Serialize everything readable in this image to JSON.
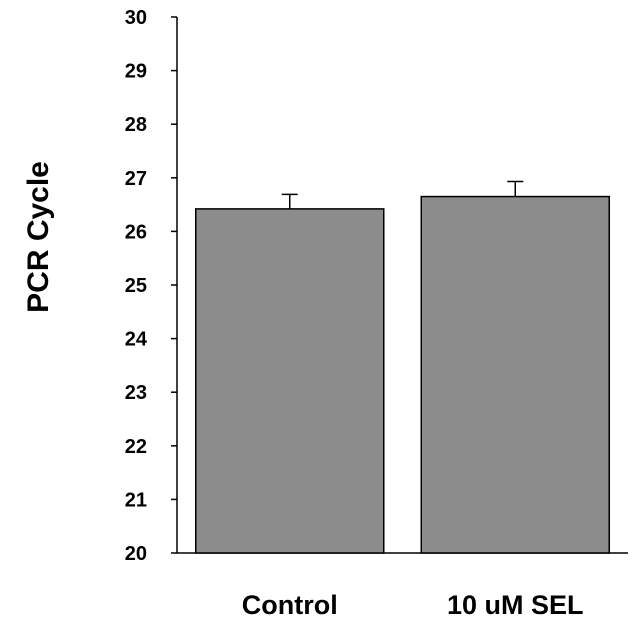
{
  "chart_data": {
    "type": "bar",
    "title": "",
    "xlabel": "",
    "ylabel": "PCR Cycle",
    "categories": [
      "Control",
      "10 uM SEL"
    ],
    "values": [
      26.42,
      26.65
    ],
    "errors": [
      0.27,
      0.28
    ],
    "ylim": [
      20,
      30
    ],
    "yticks": [
      "20",
      "21",
      "22",
      "23",
      "24",
      "25",
      "26",
      "27",
      "28",
      "29",
      "30"
    ],
    "bar_color": "#8c8c8c",
    "edge_color": "#000000",
    "grid": false,
    "legend": "none"
  }
}
